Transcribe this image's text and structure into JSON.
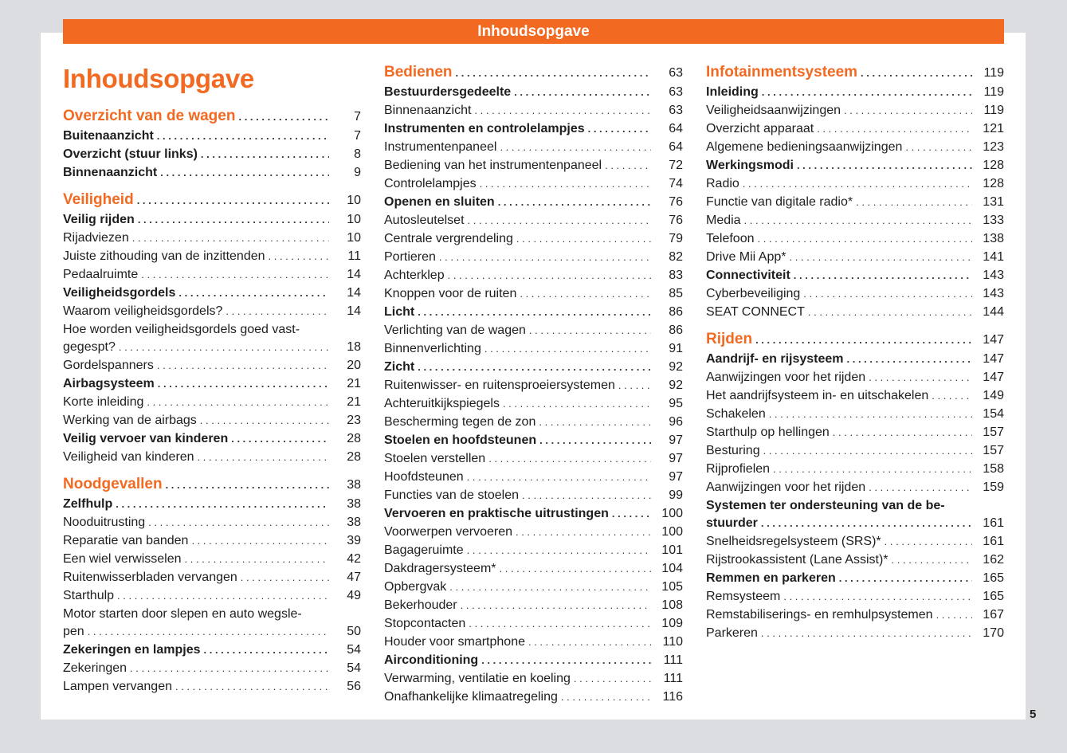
{
  "header": {
    "title": "Inhoudsopgave"
  },
  "page_title": "Inhoudsopgave",
  "page_number": "5",
  "accent_color": "#f26a22",
  "columns": [
    [
      {
        "type": "chapter",
        "text": "Overzicht van de wagen",
        "page": "7"
      },
      {
        "type": "bold",
        "text": "Buitenaanzicht",
        "page": "7"
      },
      {
        "type": "bold",
        "text": "Overzicht (stuur links)",
        "page": "8"
      },
      {
        "type": "bold",
        "text": "Binnenaanzicht",
        "page": "9"
      },
      {
        "type": "chapter",
        "text": "Veiligheid",
        "page": "10"
      },
      {
        "type": "bold",
        "text": "Veilig rijden",
        "page": "10"
      },
      {
        "type": "normal",
        "text": "Rijadviezen",
        "page": "10"
      },
      {
        "type": "normal",
        "text": "Juiste zithouding van de inzittenden",
        "page": "11"
      },
      {
        "type": "normal",
        "text": "Pedaalruimte",
        "page": "14"
      },
      {
        "type": "bold",
        "text": "Veiligheidsgordels",
        "page": "14"
      },
      {
        "type": "normal",
        "text": "Waarom veiligheidsgordels?",
        "page": "14"
      },
      {
        "type": "normal",
        "pre": "Hoe worden veiligheidsgordels goed vast-",
        "text": "gegespt?",
        "page": "18"
      },
      {
        "type": "normal",
        "text": "Gordelspanners",
        "page": "20"
      },
      {
        "type": "bold",
        "text": "Airbagsysteem",
        "page": "21"
      },
      {
        "type": "normal",
        "text": "Korte inleiding",
        "page": "21"
      },
      {
        "type": "normal",
        "text": "Werking van de airbags",
        "page": "23"
      },
      {
        "type": "bold",
        "text": "Veilig vervoer van kinderen",
        "page": "28"
      },
      {
        "type": "normal",
        "text": "Veiligheid van kinderen",
        "page": "28"
      },
      {
        "type": "chapter",
        "text": "Noodgevallen",
        "page": "38"
      },
      {
        "type": "bold",
        "text": "Zelfhulp",
        "page": "38"
      },
      {
        "type": "normal",
        "text": "Nooduitrusting",
        "page": "38"
      },
      {
        "type": "normal",
        "text": "Reparatie van banden",
        "page": "39"
      },
      {
        "type": "normal",
        "text": "Een wiel verwisselen",
        "page": "42"
      },
      {
        "type": "normal",
        "text": "Ruitenwisserbladen vervangen",
        "page": "47"
      },
      {
        "type": "normal",
        "text": "Starthulp",
        "page": "49"
      },
      {
        "type": "normal",
        "pre": "Motor starten door slepen en auto wegsle-",
        "text": "pen",
        "page": "50"
      },
      {
        "type": "bold",
        "text": "Zekeringen en lampjes",
        "page": "54"
      },
      {
        "type": "normal",
        "text": "Zekeringen",
        "page": "54"
      },
      {
        "type": "normal",
        "text": "Lampen vervangen",
        "page": "56"
      }
    ],
    [
      {
        "type": "chapter",
        "text": "Bedienen",
        "page": "63"
      },
      {
        "type": "bold",
        "text": "Bestuurdersgedeelte",
        "page": "63"
      },
      {
        "type": "normal",
        "text": "Binnenaanzicht",
        "page": "63"
      },
      {
        "type": "bold",
        "text": "Instrumenten en controlelampjes",
        "page": "64"
      },
      {
        "type": "normal",
        "text": "Instrumentenpaneel",
        "page": "64"
      },
      {
        "type": "normal",
        "text": "Bediening van het instrumentenpaneel",
        "page": "72"
      },
      {
        "type": "normal",
        "text": "Controlelampjes",
        "page": "74"
      },
      {
        "type": "bold",
        "text": "Openen en sluiten",
        "page": "76"
      },
      {
        "type": "normal",
        "text": "Autosleutelset",
        "page": "76"
      },
      {
        "type": "normal",
        "text": "Centrale vergrendeling",
        "page": "79"
      },
      {
        "type": "normal",
        "text": "Portieren",
        "page": "82"
      },
      {
        "type": "normal",
        "text": "Achterklep",
        "page": "83"
      },
      {
        "type": "normal",
        "text": "Knoppen voor de ruiten",
        "page": "85"
      },
      {
        "type": "bold",
        "text": "Licht",
        "page": "86"
      },
      {
        "type": "normal",
        "text": "Verlichting van de wagen",
        "page": "86"
      },
      {
        "type": "normal",
        "text": "Binnenverlichting",
        "page": "91"
      },
      {
        "type": "bold",
        "text": "Zicht",
        "page": "92"
      },
      {
        "type": "normal",
        "text": "Ruitenwisser- en ruitensproeiersystemen",
        "page": "92"
      },
      {
        "type": "normal",
        "text": "Achteruitkijkspiegels",
        "page": "95"
      },
      {
        "type": "normal",
        "text": "Bescherming tegen de zon",
        "page": "96"
      },
      {
        "type": "bold",
        "text": "Stoelen en hoofdsteunen",
        "page": "97"
      },
      {
        "type": "normal",
        "text": "Stoelen verstellen",
        "page": "97"
      },
      {
        "type": "normal",
        "text": "Hoofdsteunen",
        "page": "97"
      },
      {
        "type": "normal",
        "text": "Functies van de stoelen",
        "page": "99"
      },
      {
        "type": "bold",
        "text": "Vervoeren en praktische uitrustingen",
        "page": "100"
      },
      {
        "type": "normal",
        "text": "Voorwerpen vervoeren",
        "page": "100"
      },
      {
        "type": "normal",
        "text": "Bagageruimte",
        "page": "101"
      },
      {
        "type": "normal",
        "text": "Dakdragersysteem*",
        "page": "104"
      },
      {
        "type": "normal",
        "text": "Opbergvak",
        "page": "105"
      },
      {
        "type": "normal",
        "text": "Bekerhouder",
        "page": "108"
      },
      {
        "type": "normal",
        "text": "Stopcontacten",
        "page": "109"
      },
      {
        "type": "normal",
        "text": "Houder voor smartphone",
        "page": "110"
      },
      {
        "type": "bold",
        "text": "Airconditioning",
        "page": "111"
      },
      {
        "type": "normal",
        "text": "Verwarming, ventilatie en koeling",
        "page": "111"
      },
      {
        "type": "normal",
        "text": "Onafhankelijke klimaatregeling",
        "page": "116"
      }
    ],
    [
      {
        "type": "chapter",
        "text": "Infotainmentsysteem",
        "page": "119"
      },
      {
        "type": "bold",
        "text": "Inleiding",
        "page": "119"
      },
      {
        "type": "normal",
        "text": "Veiligheidsaanwijzingen",
        "page": "119"
      },
      {
        "type": "normal",
        "text": "Overzicht apparaat",
        "page": "121"
      },
      {
        "type": "normal",
        "text": "Algemene bedieningsaanwijzingen",
        "page": "123"
      },
      {
        "type": "bold",
        "text": "Werkingsmodi",
        "page": "128"
      },
      {
        "type": "normal",
        "text": "Radio",
        "page": "128"
      },
      {
        "type": "normal",
        "text": "Functie van digitale radio*",
        "page": "131"
      },
      {
        "type": "normal",
        "text": "Media",
        "page": "133"
      },
      {
        "type": "normal",
        "text": "Telefoon",
        "page": "138"
      },
      {
        "type": "normal",
        "text": "Drive Mii App*",
        "page": "141"
      },
      {
        "type": "bold",
        "text": "Connectiviteit",
        "page": "143"
      },
      {
        "type": "normal",
        "text": "Cyberbeveiliging",
        "page": "143"
      },
      {
        "type": "normal",
        "text": "SEAT CONNECT",
        "page": "144"
      },
      {
        "type": "chapter",
        "text": "Rijden",
        "page": "147"
      },
      {
        "type": "bold",
        "text": "Aandrijf- en rijsysteem",
        "page": "147"
      },
      {
        "type": "normal",
        "text": "Aanwijzingen voor het rijden",
        "page": "147"
      },
      {
        "type": "normal",
        "text": "Het aandrijfsysteem in- en uitschakelen",
        "page": "149"
      },
      {
        "type": "normal",
        "text": "Schakelen",
        "page": "154"
      },
      {
        "type": "normal",
        "text": "Starthulp op hellingen",
        "page": "157"
      },
      {
        "type": "normal",
        "text": "Besturing",
        "page": "157"
      },
      {
        "type": "normal",
        "text": "Rijprofielen",
        "page": "158"
      },
      {
        "type": "normal",
        "text": "Aanwijzingen voor het rijden",
        "page": "159"
      },
      {
        "type": "bold",
        "pre": "Systemen ter ondersteuning van de be-",
        "text": "stuurder",
        "page": "161"
      },
      {
        "type": "normal",
        "text": "Snelheidsregelsysteem (SRS)*",
        "page": "161"
      },
      {
        "type": "normal",
        "text": "Rijstrookassistent (Lane Assist)*",
        "page": "162"
      },
      {
        "type": "bold",
        "text": "Remmen en parkeren",
        "page": "165"
      },
      {
        "type": "normal",
        "text": "Remsysteem",
        "page": "165"
      },
      {
        "type": "normal",
        "text": "Remstabiliserings- en remhulpsystemen",
        "page": "167"
      },
      {
        "type": "normal",
        "text": "Parkeren",
        "page": "170"
      }
    ]
  ]
}
